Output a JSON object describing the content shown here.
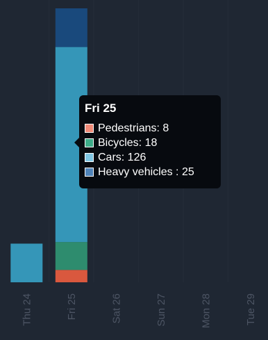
{
  "chart_data": {
    "type": "bar",
    "stacked": true,
    "categories": [
      "Thu 24",
      "Fri 25",
      "Sat 26",
      "Sun 27",
      "Mon 28",
      "Tue 29"
    ],
    "series": [
      {
        "name": "Pedestrians",
        "color": "#d9583e",
        "values": [
          0,
          8,
          0,
          0,
          0,
          0
        ]
      },
      {
        "name": "Bicycles",
        "color": "#2e8c6e",
        "values": [
          0,
          18,
          0,
          0,
          0,
          0
        ]
      },
      {
        "name": "Cars",
        "color": "#3596b8",
        "values": [
          25,
          126,
          0,
          0,
          0,
          0
        ]
      },
      {
        "name": "Heavy vehicles",
        "color": "#19497c",
        "values": [
          0,
          25,
          0,
          0,
          0,
          0
        ]
      }
    ],
    "ylim": [
      0,
      177
    ],
    "grid": true,
    "legend": "none"
  },
  "tooltip": {
    "title": "Fri 25",
    "rows": [
      {
        "text": "Pedestrians: 8",
        "color": "#f08a78"
      },
      {
        "text": "Bicycles: 18",
        "color": "#3dab88"
      },
      {
        "text": "Cars: 126",
        "color": "#7fc6e3"
      },
      {
        "text": "Heavy vehicles : 25",
        "color": "#4f83b8"
      }
    ]
  },
  "colors": {
    "background": "#1f2733",
    "gridline": "#242c38",
    "tick_label": "#4d5564",
    "tooltip_bg": "#070a0f"
  }
}
